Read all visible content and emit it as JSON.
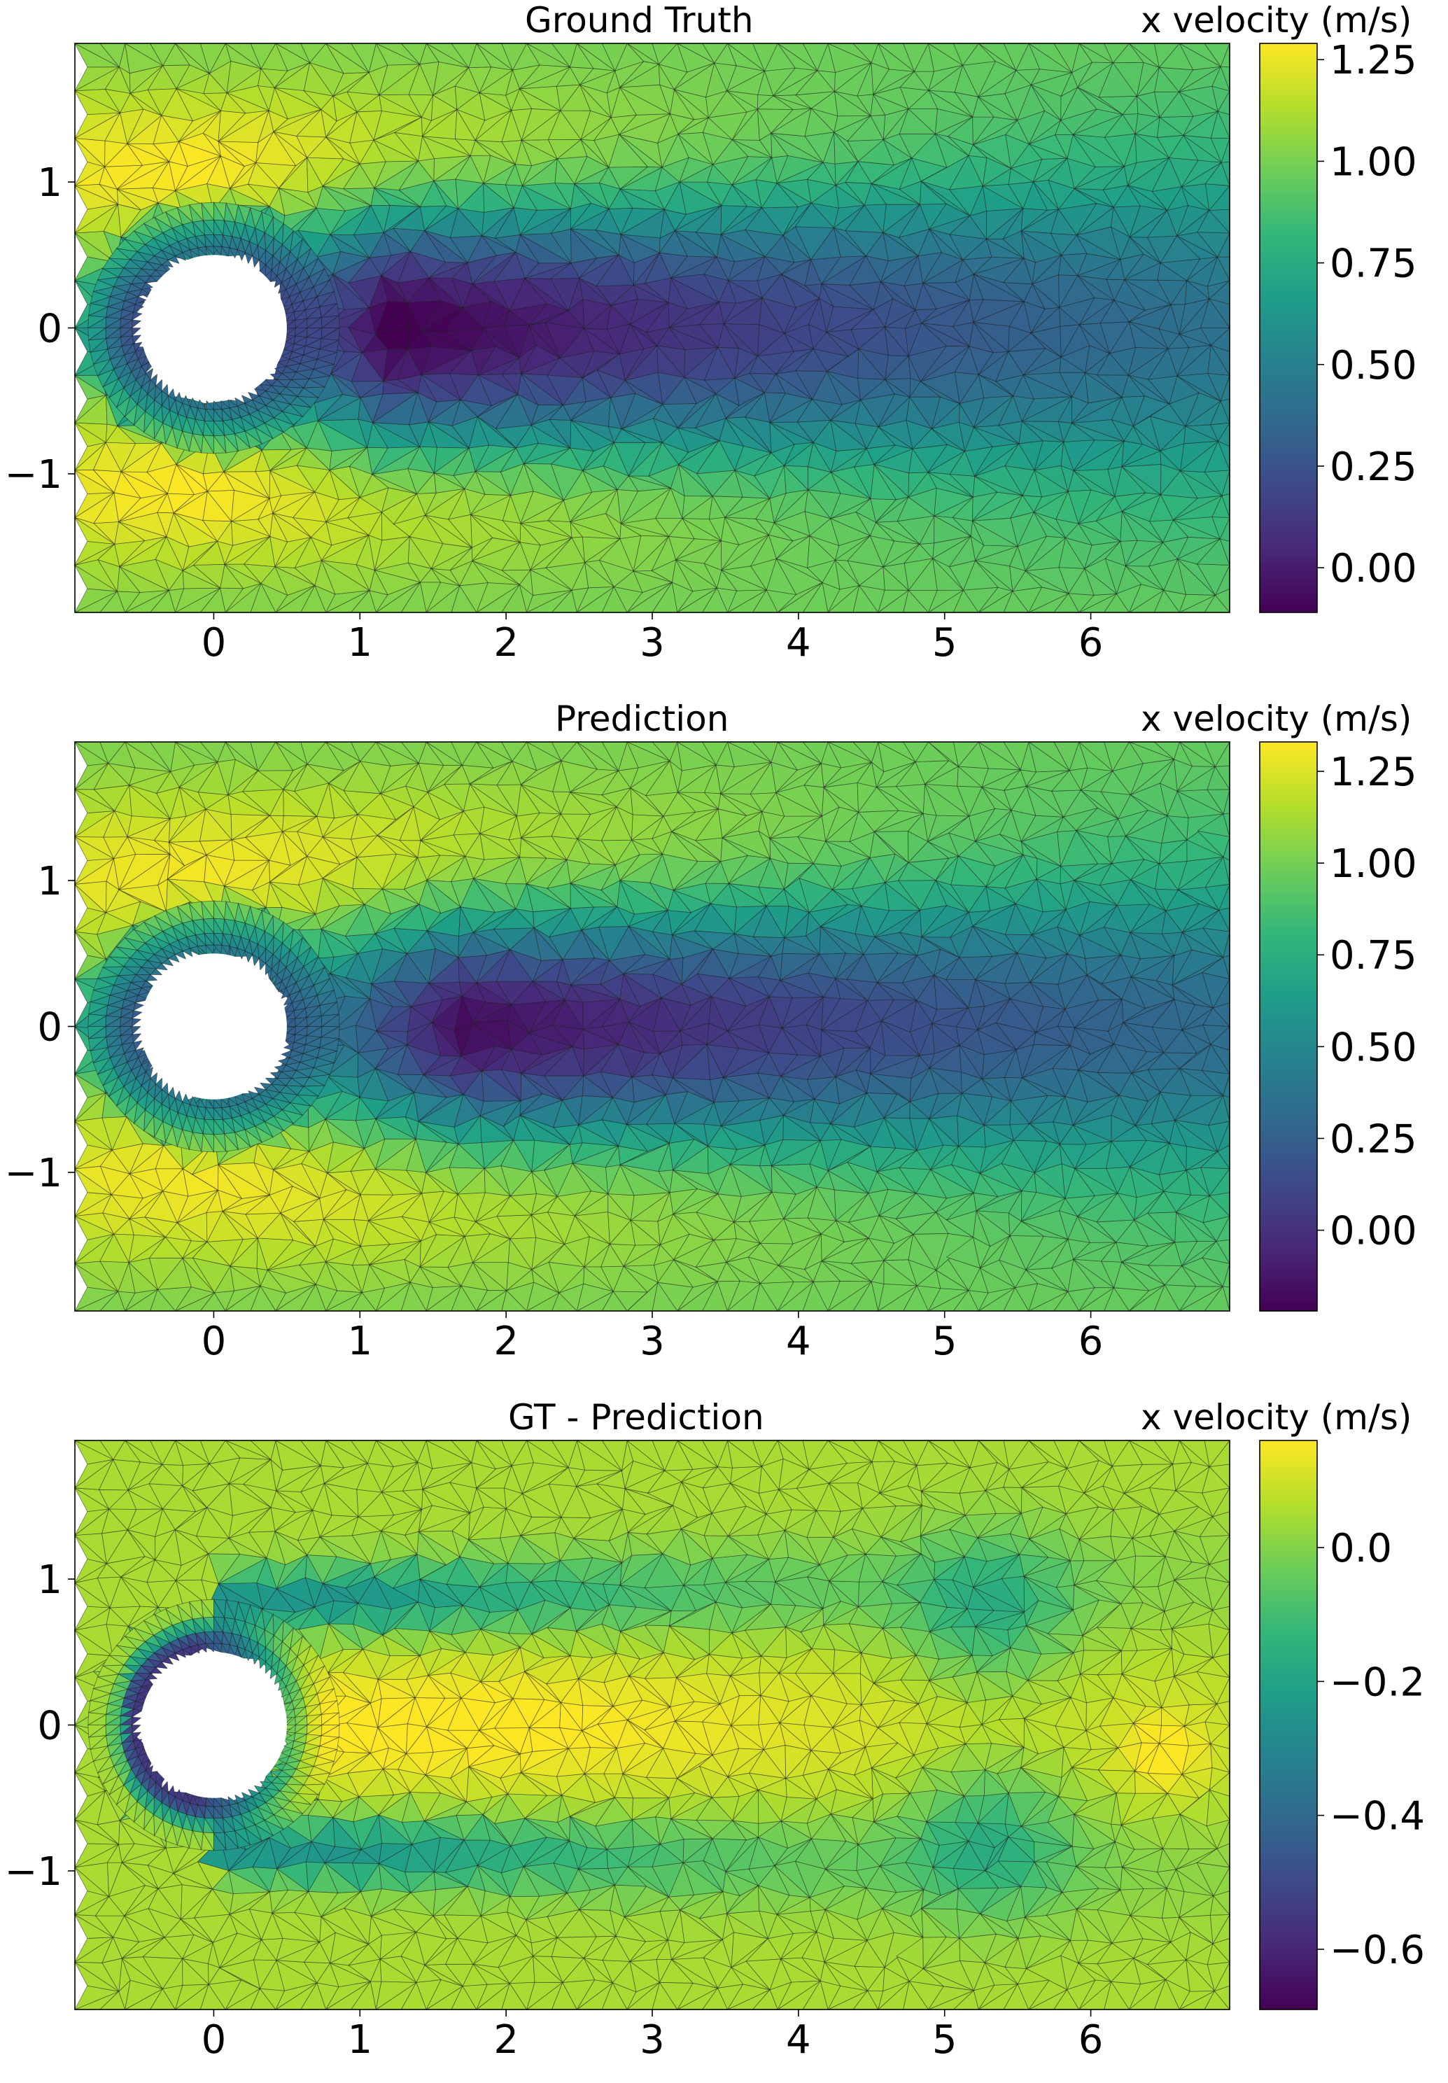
{
  "figure": {
    "colormap_stops": [
      "#440154",
      "#482878",
      "#3e4989",
      "#31688e",
      "#26828e",
      "#1f9e89",
      "#35b779",
      "#6ece58",
      "#b5de2b",
      "#fde725"
    ]
  },
  "chart_data": [
    {
      "type": "heatmap",
      "title": "Ground Truth",
      "field": "x velocity",
      "colorbar_label": "x velocity (m/s)",
      "colorbar_range": [
        -0.11,
        1.29
      ],
      "colorbar_ticks": [
        {
          "value": 0.0,
          "label": "0.00"
        },
        {
          "value": 0.25,
          "label": "0.25"
        },
        {
          "value": 0.5,
          "label": "0.50"
        },
        {
          "value": 0.75,
          "label": "0.75"
        },
        {
          "value": 1.0,
          "label": "1.00"
        },
        {
          "value": 1.25,
          "label": "1.25"
        }
      ],
      "xlim": [
        -0.95,
        6.95
      ],
      "ylim": [
        -1.95,
        1.95
      ],
      "xticks": [
        {
          "value": 0,
          "label": "0"
        },
        {
          "value": 1,
          "label": "1"
        },
        {
          "value": 2,
          "label": "2"
        },
        {
          "value": 3,
          "label": "3"
        },
        {
          "value": 4,
          "label": "4"
        },
        {
          "value": 5,
          "label": "5"
        },
        {
          "value": 6,
          "label": "6"
        }
      ],
      "yticks": [
        {
          "value": 1,
          "label": "1"
        },
        {
          "value": 0,
          "label": "0"
        },
        {
          "value": -1,
          "label": "−1"
        }
      ],
      "obstacle": {
        "cx": 0,
        "cy": 0,
        "r": 0.5
      },
      "field_model": {
        "freestream": 1.0,
        "far_edge_value": 0.98,
        "wake_depth": 1.15,
        "wake_decay": 0.12,
        "wake_peak_x": 1.3,
        "wake_width": 0.55,
        "wake_spread": 0.055,
        "lobe_gain": 0.3,
        "lobe_y": 1.1,
        "lobe_width": 0.55,
        "lobe_decay": 0.22,
        "lobe_x": 0.6,
        "corner_value": 0.6
      }
    },
    {
      "type": "heatmap",
      "title": "Prediction",
      "field": "x velocity",
      "colorbar_label": "x velocity (m/s)",
      "colorbar_range": [
        -0.22,
        1.33
      ],
      "colorbar_ticks": [
        {
          "value": 0.0,
          "label": "0.00"
        },
        {
          "value": 0.25,
          "label": "0.25"
        },
        {
          "value": 0.5,
          "label": "0.50"
        },
        {
          "value": 0.75,
          "label": "0.75"
        },
        {
          "value": 1.0,
          "label": "1.00"
        },
        {
          "value": 1.25,
          "label": "1.25"
        }
      ],
      "xlim": [
        -0.95,
        6.95
      ],
      "ylim": [
        -1.95,
        1.95
      ],
      "xticks": [
        {
          "value": 0,
          "label": "0"
        },
        {
          "value": 1,
          "label": "1"
        },
        {
          "value": 2,
          "label": "2"
        },
        {
          "value": 3,
          "label": "3"
        },
        {
          "value": 4,
          "label": "4"
        },
        {
          "value": 5,
          "label": "5"
        },
        {
          "value": 6,
          "label": "6"
        }
      ],
      "yticks": [
        {
          "value": 1,
          "label": "1"
        },
        {
          "value": 0,
          "label": "0"
        },
        {
          "value": -1,
          "label": "−1"
        }
      ],
      "obstacle": {
        "cx": 0,
        "cy": 0,
        "r": 0.5
      },
      "field_model": {
        "freestream": 1.0,
        "far_edge_value": 0.98,
        "wake_depth": 1.2,
        "wake_decay": 0.11,
        "wake_peak_x": 1.8,
        "wake_width": 0.5,
        "wake_spread": 0.055,
        "lobe_gain": 0.32,
        "lobe_y": 1.05,
        "lobe_width": 0.6,
        "lobe_decay": 0.2,
        "lobe_x": 0.9,
        "corner_value": 0.55
      }
    },
    {
      "type": "heatmap",
      "title": "GT - Prediction",
      "field": "x velocity",
      "colorbar_label": "x velocity (m/s)",
      "colorbar_range": [
        -0.69,
        0.16
      ],
      "colorbar_ticks": [
        {
          "value": 0.0,
          "label": "0.0"
        },
        {
          "value": -0.2,
          "label": "−0.2"
        },
        {
          "value": -0.4,
          "label": "−0.4"
        },
        {
          "value": -0.6,
          "label": "−0.6"
        }
      ],
      "xlim": [
        -0.95,
        6.95
      ],
      "ylim": [
        -1.95,
        1.95
      ],
      "xticks": [
        {
          "value": 0,
          "label": "0"
        },
        {
          "value": 1,
          "label": "1"
        },
        {
          "value": 2,
          "label": "2"
        },
        {
          "value": 3,
          "label": "3"
        },
        {
          "value": 4,
          "label": "4"
        },
        {
          "value": 5,
          "label": "5"
        },
        {
          "value": 6,
          "label": "6"
        }
      ],
      "yticks": [
        {
          "value": 1,
          "label": "1"
        },
        {
          "value": 0,
          "label": "0"
        },
        {
          "value": -1,
          "label": "−1"
        }
      ],
      "obstacle": {
        "cx": 0,
        "cy": 0,
        "r": 0.5
      },
      "field_model": {
        "base": 0.05,
        "core_gain": 0.13,
        "core_width": 0.38,
        "core_decay": 0.3,
        "shear_gain": 0.3,
        "shear_y": 0.85,
        "shear_width": 0.2,
        "shear_decay": 0.35,
        "rim_gain": 0.6,
        "rim_width": 0.14,
        "rim_decay": 1.6,
        "vortex_center": [
          5.3,
          0.75
        ],
        "vortex_gain": 0.17,
        "vortex_radius": 0.55,
        "edge_blob_center": [
          6.5,
          -0.2
        ],
        "edge_blob_gain": 0.1,
        "edge_blob_radius": 0.3
      }
    }
  ]
}
